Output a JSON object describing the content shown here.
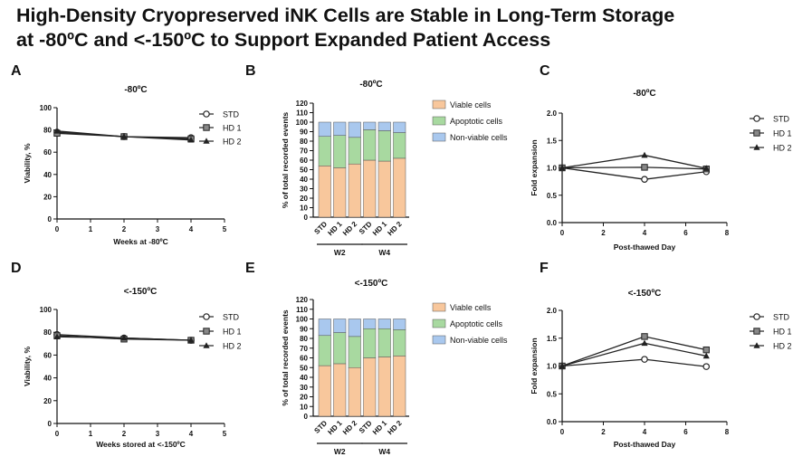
{
  "title": {
    "line1": "High-Density Cryopreserved iNK Cells are Stable in Long-Term Storage",
    "line2": "at -80ºC and <-150ºC to Support Expanded Patient Access"
  },
  "colors": {
    "viable": "#F8C79C",
    "apoptotic": "#A8D9A0",
    "nonviable": "#A9C8EE",
    "line": "#222222"
  },
  "chart_data": [
    {
      "id": "A",
      "type": "line",
      "title": "-80ºC",
      "xlabel": "Weeks at -80ºC",
      "ylabel": "Viability, %",
      "xlim": [
        0,
        5
      ],
      "ylim": [
        0,
        100
      ],
      "xticks": [
        0,
        1,
        2,
        3,
        4,
        5
      ],
      "yticks": [
        0,
        20,
        40,
        60,
        80,
        100
      ],
      "series": [
        {
          "name": "STD",
          "marker": "circle",
          "x": [
            0,
            2,
            4
          ],
          "y": [
            78,
            74,
            73
          ]
        },
        {
          "name": "HD 1",
          "marker": "square",
          "x": [
            0,
            2,
            4
          ],
          "y": [
            77,
            74,
            72
          ]
        },
        {
          "name": "HD 2",
          "marker": "triangle",
          "x": [
            0,
            2,
            4
          ],
          "y": [
            79,
            74,
            71
          ]
        }
      ]
    },
    {
      "id": "B",
      "type": "bar",
      "stacked": true,
      "title": "-80ºC",
      "ylabel": "% of total recorded events",
      "ylim": [
        0,
        120
      ],
      "yticks": [
        0,
        10,
        20,
        30,
        40,
        50,
        60,
        70,
        80,
        90,
        100,
        110,
        120
      ],
      "categories": [
        "STD",
        "HD 1",
        "HD 2",
        "STD",
        "HD 1",
        "HD 2"
      ],
      "groups": [
        {
          "label": "W2",
          "count": 3
        },
        {
          "label": "W4",
          "count": 3
        }
      ],
      "series": [
        {
          "name": "Viable cells",
          "values": [
            54,
            52,
            56,
            60,
            59,
            62
          ]
        },
        {
          "name": "Apoptotic cells",
          "values": [
            31,
            34,
            28,
            32,
            32,
            27
          ]
        },
        {
          "name": "Non-viable cells",
          "values": [
            15,
            14,
            16,
            8,
            9,
            11
          ]
        }
      ]
    },
    {
      "id": "C",
      "type": "line",
      "title": "-80ºC",
      "xlabel": "Post-thawed Day",
      "ylabel": "Fold expansion",
      "xlim": [
        0,
        8
      ],
      "ylim": [
        0,
        2.0
      ],
      "xticks": [
        0,
        2,
        4,
        6,
        8
      ],
      "yticks": [
        0.0,
        0.5,
        1.0,
        1.5,
        2.0
      ],
      "series": [
        {
          "name": "STD",
          "marker": "circle",
          "x": [
            0,
            4,
            7
          ],
          "y": [
            1.0,
            0.79,
            0.93
          ]
        },
        {
          "name": "HD 1",
          "marker": "square",
          "x": [
            0,
            4,
            7
          ],
          "y": [
            1.0,
            1.01,
            0.98
          ]
        },
        {
          "name": "HD 2",
          "marker": "triangle",
          "x": [
            0,
            4,
            7
          ],
          "y": [
            1.0,
            1.23,
            0.99
          ]
        }
      ]
    },
    {
      "id": "D",
      "type": "line",
      "title": "<-150ºC",
      "xlabel": "Weeks stored  at <-150ºC",
      "ylabel": "Viability, %",
      "xlim": [
        0,
        5
      ],
      "ylim": [
        0,
        100
      ],
      "xticks": [
        0,
        1,
        2,
        3,
        4,
        5
      ],
      "yticks": [
        0,
        20,
        40,
        60,
        80,
        100
      ],
      "series": [
        {
          "name": "STD",
          "marker": "circle",
          "x": [
            0,
            2,
            4
          ],
          "y": [
            78,
            75,
            73
          ]
        },
        {
          "name": "HD 1",
          "marker": "square",
          "x": [
            0,
            2,
            4
          ],
          "y": [
            77,
            74,
            73
          ]
        },
        {
          "name": "HD 2",
          "marker": "triangle",
          "x": [
            0,
            2,
            4
          ],
          "y": [
            76,
            75,
            73
          ]
        }
      ]
    },
    {
      "id": "E",
      "type": "bar",
      "stacked": true,
      "title": "<-150ºC",
      "ylabel": "% of total recorded events",
      "ylim": [
        0,
        120
      ],
      "yticks": [
        0,
        10,
        20,
        30,
        40,
        50,
        60,
        70,
        80,
        90,
        100,
        110,
        120
      ],
      "categories": [
        "STD",
        "HD 1",
        "HD 2",
        "STD",
        "HD 1",
        "HD 2"
      ],
      "groups": [
        {
          "label": "W2",
          "count": 3
        },
        {
          "label": "W4",
          "count": 3
        }
      ],
      "series": [
        {
          "name": "Viable cells",
          "values": [
            52,
            54,
            50,
            60,
            61,
            62
          ]
        },
        {
          "name": "Apoptotic cells",
          "values": [
            31,
            32,
            32,
            30,
            29,
            27
          ]
        },
        {
          "name": "Non-viable cells",
          "values": [
            17,
            14,
            18,
            10,
            10,
            11
          ]
        }
      ]
    },
    {
      "id": "F",
      "type": "line",
      "title": "<-150ºC",
      "xlabel": "Post-thawed Day",
      "ylabel": "Fold expansion",
      "xlim": [
        0,
        8
      ],
      "ylim": [
        0,
        2.0
      ],
      "xticks": [
        0,
        2,
        4,
        6,
        8
      ],
      "yticks": [
        0.0,
        0.5,
        1.0,
        1.5,
        2.0
      ],
      "series": [
        {
          "name": "STD",
          "marker": "circle",
          "x": [
            0,
            4,
            7
          ],
          "y": [
            1.0,
            1.12,
            0.99
          ]
        },
        {
          "name": "HD 1",
          "marker": "square",
          "x": [
            0,
            4,
            7
          ],
          "y": [
            1.0,
            1.53,
            1.29
          ]
        },
        {
          "name": "HD 2",
          "marker": "triangle",
          "x": [
            0,
            4,
            7
          ],
          "y": [
            1.0,
            1.41,
            1.18
          ]
        }
      ]
    }
  ]
}
